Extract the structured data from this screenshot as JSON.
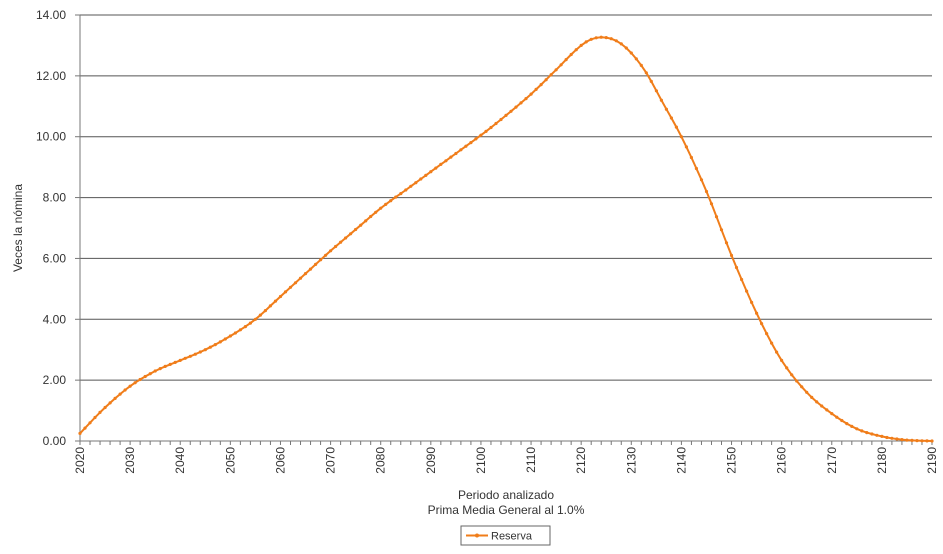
{
  "chart_data": {
    "type": "line",
    "title": "",
    "xlabel": "Periodo analizado",
    "xlabel_sub": "Prima Media General al 1.0%",
    "ylabel": "Veces la nómina",
    "xlim": [
      2020,
      2190
    ],
    "ylim": [
      0,
      14
    ],
    "x_ticks": [
      "2020",
      "2030",
      "2040",
      "2050",
      "2060",
      "2070",
      "2080",
      "2090",
      "2100",
      "2110",
      "2120",
      "2130",
      "2140",
      "2150",
      "2160",
      "2170",
      "2180",
      "2190"
    ],
    "y_ticks": [
      "0.00",
      "2.00",
      "4.00",
      "6.00",
      "8.00",
      "10.00",
      "12.00",
      "14.00"
    ],
    "grid": "horizontal",
    "legend_position": "bottom-center",
    "colors": {
      "series": "#f07d1a",
      "grid": "#555555",
      "axis": "#777777"
    },
    "series": [
      {
        "name": "Reserva",
        "x": [
          2020,
          2025,
          2030,
          2035,
          2040,
          2045,
          2050,
          2055,
          2060,
          2065,
          2070,
          2075,
          2080,
          2085,
          2090,
          2095,
          2100,
          2105,
          2110,
          2115,
          2120,
          2122,
          2124,
          2126,
          2128,
          2130,
          2133,
          2136,
          2140,
          2145,
          2150,
          2155,
          2160,
          2165,
          2170,
          2175,
          2180,
          2185,
          2190
        ],
        "y": [
          0.25,
          1.1,
          1.8,
          2.3,
          2.65,
          3.0,
          3.45,
          4.0,
          4.75,
          5.5,
          6.25,
          6.95,
          7.65,
          8.25,
          8.85,
          9.45,
          10.05,
          10.7,
          11.4,
          12.2,
          13.0,
          13.2,
          13.27,
          13.22,
          13.05,
          12.75,
          12.1,
          11.2,
          10.0,
          8.2,
          6.1,
          4.2,
          2.65,
          1.6,
          0.9,
          0.4,
          0.15,
          0.03,
          0.0
        ]
      }
    ]
  }
}
